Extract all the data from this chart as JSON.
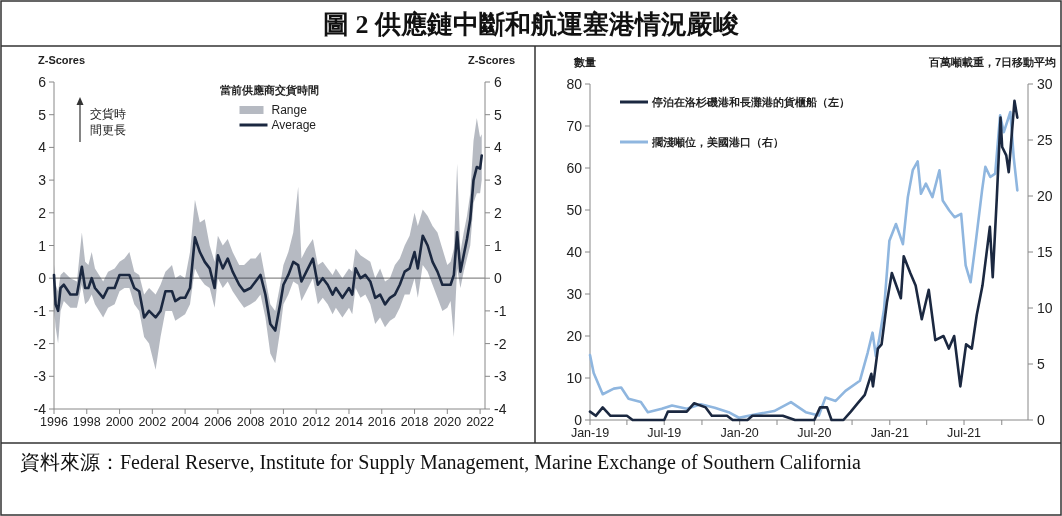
{
  "chart_data": [
    {
      "type": "line",
      "title": "圖 2 供應鏈中斷和航運塞港情況嚴峻",
      "ylabel": "Z-Scores",
      "y2label": "Z-Scores",
      "legend_title": "當前供應商交貨時間",
      "legend": "top",
      "annotations": [
        "交貨時間更長",
        "資料來源：Federal Reserve, Institute for Supply Management, Marine Exchange of Southern California",
        "Range"
      ],
      "xlim": [
        1996,
        2022.3
      ],
      "xticks": [
        1996,
        1998,
        2000,
        2002,
        2004,
        2006,
        2008,
        2010,
        2012,
        2014,
        2016,
        2018,
        2020,
        2022
      ],
      "ylim": [
        -4,
        6
      ],
      "yticks": [
        -4,
        -3,
        -2,
        -1,
        0,
        1,
        2,
        3,
        4,
        5,
        6
      ],
      "y2lim": [
        -4,
        6
      ],
      "y2ticks": [
        -4,
        -3,
        -2,
        -1,
        0,
        1,
        2,
        3,
        4,
        5,
        6
      ],
      "ref_lines": [
        {
          "axis": "y",
          "value": 0,
          "color": "#8a8a8a"
        }
      ],
      "x": [
        1996.0,
        1996.1,
        1996.25,
        1996.4,
        1996.6,
        1997.0,
        1997.4,
        1997.7,
        1997.9,
        1998.1,
        1998.3,
        1998.5,
        1999.0,
        1999.3,
        1999.7,
        2000.0,
        2000.3,
        2000.6,
        2000.9,
        2001.2,
        2001.5,
        2001.8,
        2002.2,
        2002.5,
        2002.8,
        2003.2,
        2003.4,
        2003.7,
        2004.0,
        2004.3,
        2004.6,
        2004.9,
        2005.2,
        2005.5,
        2005.8,
        2006.0,
        2006.3,
        2006.6,
        2006.9,
        2007.3,
        2007.6,
        2008.0,
        2008.3,
        2008.6,
        2008.9,
        2009.2,
        2009.5,
        2009.8,
        2010.0,
        2010.3,
        2010.6,
        2010.9,
        2011.1,
        2011.4,
        2011.8,
        2012.1,
        2012.4,
        2012.7,
        2013.0,
        2013.2,
        2013.6,
        2014.0,
        2014.2,
        2014.4,
        2014.7,
        2015.0,
        2015.3,
        2015.6,
        2015.9,
        2016.2,
        2016.5,
        2016.8,
        2017.1,
        2017.4,
        2017.7,
        2018.0,
        2018.2,
        2018.5,
        2018.8,
        2019.1,
        2019.4,
        2019.7,
        2020.0,
        2020.2,
        2020.4,
        2020.6,
        2020.8,
        2021.0,
        2021.2,
        2021.4,
        2021.6,
        2021.8,
        2022.0,
        2022.1
      ],
      "series": [
        {
          "name": "Average",
          "type": "line",
          "color": "#1b2840",
          "values": [
            0.1,
            -0.8,
            -1.0,
            -0.3,
            -0.2,
            -0.5,
            -0.5,
            0.35,
            -0.3,
            -0.3,
            0.0,
            -0.3,
            -0.6,
            -0.3,
            -0.3,
            0.1,
            0.1,
            0.1,
            -0.3,
            -0.4,
            -1.2,
            -1.0,
            -1.2,
            -1.0,
            -0.4,
            -0.4,
            -0.7,
            -0.6,
            -0.6,
            -0.3,
            1.25,
            0.8,
            0.5,
            0.3,
            -0.3,
            0.7,
            0.3,
            0.6,
            0.2,
            -0.2,
            -0.4,
            -0.3,
            -0.1,
            0.1,
            -0.5,
            -1.4,
            -1.6,
            -0.8,
            -0.2,
            0.1,
            0.5,
            0.4,
            -0.1,
            0.2,
            0.6,
            -0.2,
            0.0,
            -0.2,
            -0.5,
            -0.3,
            -0.6,
            -0.3,
            -0.5,
            0.3,
            0.0,
            0.1,
            -0.1,
            -0.6,
            -0.5,
            -0.8,
            -0.6,
            -0.5,
            -0.2,
            0.2,
            0.3,
            0.8,
            0.3,
            1.3,
            1.0,
            0.5,
            0.2,
            -0.2,
            -0.2,
            -0.2,
            0.1,
            1.4,
            0.2,
            0.7,
            1.2,
            1.8,
            3.0,
            3.4,
            3.35,
            3.75
          ],
          "lower": [
            -0.9,
            -1.5,
            -2.0,
            -1.0,
            -0.7,
            -0.9,
            -0.9,
            -0.2,
            -0.8,
            -0.7,
            -0.5,
            -0.8,
            -1.2,
            -0.9,
            -0.8,
            -0.4,
            -0.3,
            -0.3,
            -0.8,
            -1.0,
            -1.8,
            -2.0,
            -2.8,
            -1.8,
            -1.0,
            -1.0,
            -1.3,
            -1.2,
            -1.1,
            -0.8,
            0.3,
            0.0,
            -0.2,
            -0.3,
            -0.9,
            0.0,
            -0.3,
            -0.1,
            -0.4,
            -0.7,
            -0.9,
            -0.8,
            -0.7,
            -0.5,
            -1.2,
            -2.3,
            -2.6,
            -1.6,
            -0.8,
            -0.5,
            -0.1,
            -0.2,
            -0.7,
            -0.4,
            0.0,
            -0.8,
            -0.6,
            -0.8,
            -1.1,
            -0.9,
            -1.2,
            -0.9,
            -1.1,
            -0.3,
            -0.6,
            -0.5,
            -0.8,
            -1.4,
            -1.2,
            -1.5,
            -1.3,
            -1.2,
            -0.9,
            -0.5,
            -0.5,
            0.0,
            -0.6,
            0.4,
            0.2,
            -0.2,
            -0.6,
            -1.0,
            -0.9,
            -0.7,
            -1.8,
            0.3,
            -0.3,
            0.2,
            0.6,
            1.0,
            2.3,
            2.6,
            2.6,
            3.0
          ],
          "upper": [
            0.4,
            -0.2,
            -0.4,
            0.1,
            0.2,
            0.0,
            -0.1,
            1.4,
            0.5,
            0.4,
            0.8,
            0.3,
            -0.1,
            0.2,
            0.3,
            0.5,
            0.6,
            0.8,
            0.2,
            0.1,
            -0.5,
            -0.3,
            -0.5,
            -0.2,
            0.2,
            0.4,
            0.0,
            0.1,
            0.0,
            0.8,
            2.4,
            1.7,
            1.8,
            1.0,
            0.5,
            1.3,
            1.0,
            1.2,
            0.8,
            0.4,
            0.4,
            0.6,
            0.6,
            0.8,
            0.0,
            -0.8,
            -1.0,
            -0.2,
            0.4,
            0.8,
            1.4,
            2.8,
            0.6,
            0.9,
            1.2,
            0.4,
            0.5,
            0.3,
            0.1,
            0.3,
            0.0,
            0.3,
            0.2,
            0.9,
            0.7,
            0.6,
            0.5,
            0.0,
            0.3,
            -0.1,
            0.0,
            0.4,
            0.6,
            1.0,
            1.3,
            2.0,
            1.6,
            2.1,
            1.9,
            1.6,
            1.4,
            0.9,
            0.4,
            0.5,
            0.9,
            3.5,
            0.8,
            1.4,
            1.9,
            2.6,
            4.2,
            4.9,
            4.3,
            4.4
          ]
        }
      ]
    },
    {
      "type": "line",
      "ylabel": "數量",
      "y2label": "百萬噸載重，7日移動平均",
      "legend": "top left",
      "xlim": [
        "2019-01-01",
        "2021-12-04"
      ],
      "xticks": [
        {
          "value": "2019-01-01",
          "label": "Jan-19"
        },
        {
          "value": "2019-04-01",
          "label": null
        },
        {
          "value": "2019-07-01",
          "label": "Jul-19"
        },
        {
          "value": "2019-10-01",
          "label": null
        },
        {
          "value": "2020-01-01",
          "label": "Jan-20"
        },
        {
          "value": "2020-04-01",
          "label": null
        },
        {
          "value": "2020-07-01",
          "label": "Jul-20"
        },
        {
          "value": "2020-10-01",
          "label": null
        },
        {
          "value": "2021-01-01",
          "label": "Jan-21"
        },
        {
          "value": "2021-04-01",
          "label": null
        },
        {
          "value": "2021-07-01",
          "label": "Jul-21"
        },
        {
          "value": "2021-10-01",
          "label": null
        }
      ],
      "ylim": [
        0,
        80
      ],
      "yticks": [
        0,
        10,
        20,
        30,
        40,
        50,
        60,
        70,
        80
      ],
      "y2lim": [
        0,
        30
      ],
      "y2ticks": [
        0,
        5,
        10,
        15,
        20,
        25,
        30
      ],
      "series": [
        {
          "name": "停泊在洛杉磯港和長灘港的貨櫃船（左）",
          "color": "#1b2840",
          "x": [
            "2019-01-01",
            "2019-01-15",
            "2019-02-01",
            "2019-02-20",
            "2019-04-01",
            "2019-04-15",
            "2019-07-01",
            "2019-07-10",
            "2019-08-25",
            "2019-09-12",
            "2019-10-10",
            "2019-10-25",
            "2019-12-01",
            "2019-12-15",
            "2020-01-20",
            "2020-02-01",
            "2020-04-15",
            "2020-05-15",
            "2020-07-01",
            "2020-07-15",
            "2020-08-01",
            "2020-08-12",
            "2020-09-10",
            "2020-09-28",
            "2020-10-15",
            "2020-11-01",
            "2020-11-17",
            "2020-11-21",
            "2020-12-03",
            "2020-12-12",
            "2020-12-25",
            "2021-01-06",
            "2021-01-28",
            "2021-02-04",
            "2021-02-20",
            "2021-03-05",
            "2021-03-20",
            "2021-04-06",
            "2021-04-22",
            "2021-05-12",
            "2021-05-25",
            "2021-06-07",
            "2021-06-22",
            "2021-07-06",
            "2021-07-20",
            "2021-08-01",
            "2021-08-15",
            "2021-09-02",
            "2021-09-09",
            "2021-09-19",
            "2021-09-28",
            "2021-10-02",
            "2021-10-12",
            "2021-10-18",
            "2021-11-01",
            "2021-11-08"
          ],
          "values": [
            2,
            1,
            3,
            1,
            1,
            0,
            0,
            2,
            2,
            4,
            3,
            1,
            1,
            0,
            0,
            1,
            1,
            0,
            0,
            3,
            3,
            0,
            0,
            2,
            4,
            6,
            11,
            8,
            17,
            18,
            28,
            35,
            29,
            39,
            35,
            32,
            24,
            31,
            19,
            20,
            17,
            20,
            8,
            18,
            17,
            25,
            32,
            46,
            34,
            53,
            72,
            65,
            63,
            59,
            76,
            72
          ]
        },
        {
          "name": "擱淺噸位，美國港口（右）",
          "color": "#8fb6df",
          "axis": "y2",
          "x": [
            "2019-01-01",
            "2019-01-10",
            "2019-02-01",
            "2019-02-28",
            "2019-03-18",
            "2019-04-05",
            "2019-05-05",
            "2019-05-22",
            "2019-06-25",
            "2019-07-20",
            "2019-08-25",
            "2019-09-28",
            "2019-11-01",
            "2019-12-05",
            "2019-12-30",
            "2020-02-10",
            "2020-03-25",
            "2020-05-05",
            "2020-06-10",
            "2020-07-12",
            "2020-07-28",
            "2020-08-22",
            "2020-09-15",
            "2020-10-20",
            "2020-11-08",
            "2020-11-20",
            "2020-11-28",
            "2020-12-06",
            "2020-12-18",
            "2020-12-31",
            "2021-01-16",
            "2021-02-02",
            "2021-02-14",
            "2021-02-26",
            "2021-03-10",
            "2021-03-18",
            "2021-03-30",
            "2021-04-15",
            "2021-05-02",
            "2021-05-10",
            "2021-05-26",
            "2021-06-08",
            "2021-06-24",
            "2021-07-05",
            "2021-07-17",
            "2021-07-29",
            "2021-08-14",
            "2021-08-22",
            "2021-09-03",
            "2021-09-15",
            "2021-09-27",
            "2021-10-06",
            "2021-10-22",
            "2021-10-30",
            "2021-11-08"
          ],
          "values": [
            5.8,
            4.2,
            2.3,
            2.8,
            2.9,
            1.9,
            1.6,
            0.7,
            1.0,
            1.3,
            1.0,
            1.4,
            1.1,
            0.7,
            0.2,
            0.5,
            0.8,
            1.6,
            0.7,
            0.4,
            2.0,
            1.7,
            2.6,
            3.5,
            6.0,
            7.8,
            5.7,
            7.2,
            9.9,
            16,
            17.5,
            15.7,
            19.9,
            22.3,
            23.1,
            20.2,
            21.1,
            19.9,
            22.3,
            19.6,
            18.7,
            18.1,
            18.4,
            13.8,
            12.3,
            15.7,
            20.5,
            22.6,
            21.7,
            22.0,
            27.2,
            25.7,
            27.5,
            23.5,
            20.5
          ]
        }
      ]
    }
  ]
}
